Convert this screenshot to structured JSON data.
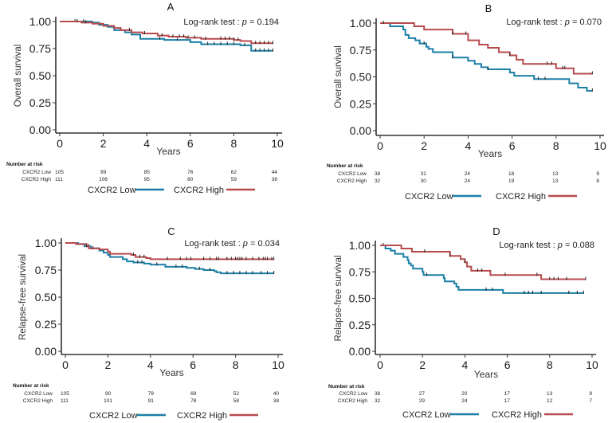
{
  "colors": {
    "low": "#1a7fa6",
    "high": "#b84a4e"
  },
  "chart_data": [
    {
      "type": "line",
      "subtype": "kaplan-meier",
      "title": "A",
      "xlabel": "Years",
      "ylabel": "Overall survival",
      "xlim": [
        0,
        10
      ],
      "ylim": [
        0,
        1
      ],
      "xticks": [
        "0",
        "2",
        "4",
        "6",
        "8",
        "10"
      ],
      "yticks": [
        "0.00",
        "0.25",
        "0.50",
        "0.75",
        "1.00"
      ],
      "annotation": {
        "label": "Log-rank test :",
        "p_symbol": "p",
        "p_value": "= 0.194"
      },
      "legend": {
        "position": "bottom",
        "entries": [
          "CXCR2 Low",
          "CXCR2 High"
        ]
      },
      "risk_table": {
        "header": "Number at risk",
        "times": [
          0,
          2,
          4,
          6,
          8,
          10
        ],
        "rows": [
          {
            "label": "CXCR2 Low",
            "values": [
              "105",
              "99",
              "85",
              "76",
              "62",
              "44"
            ]
          },
          {
            "label": "CXCR2 High",
            "values": [
              "111",
              "106",
              "95",
              "80",
              "59",
              "38"
            ]
          }
        ]
      },
      "series": [
        {
          "name": "CXCR2 Low",
          "steps": [
            [
              0,
              1.0
            ],
            [
              1.5,
              0.99
            ],
            [
              1.8,
              0.97
            ],
            [
              2.2,
              0.95
            ],
            [
              2.5,
              0.92
            ],
            [
              3.0,
              0.9
            ],
            [
              3.3,
              0.88
            ],
            [
              3.7,
              0.84
            ],
            [
              4.8,
              0.83
            ],
            [
              6.0,
              0.81
            ],
            [
              6.5,
              0.79
            ],
            [
              8.3,
              0.78
            ],
            [
              8.8,
              0.73
            ],
            [
              9.8,
              0.73
            ]
          ],
          "censor_times": [
            0.7,
            1.1,
            4.6,
            5.4,
            6.8,
            7.1,
            7.4,
            7.7,
            8.0,
            8.5,
            9.0,
            9.2,
            9.4,
            9.6,
            9.8
          ]
        },
        {
          "name": "CXCR2 High",
          "steps": [
            [
              0,
              1.0
            ],
            [
              1.0,
              0.99
            ],
            [
              1.5,
              0.98
            ],
            [
              2.0,
              0.96
            ],
            [
              2.5,
              0.94
            ],
            [
              2.8,
              0.92
            ],
            [
              3.3,
              0.9
            ],
            [
              3.8,
              0.89
            ],
            [
              4.5,
              0.87
            ],
            [
              5.0,
              0.86
            ],
            [
              5.8,
              0.85
            ],
            [
              6.5,
              0.84
            ],
            [
              8.0,
              0.83
            ],
            [
              8.3,
              0.82
            ],
            [
              8.8,
              0.8
            ],
            [
              9.8,
              0.8
            ]
          ],
          "censor_times": [
            0.8,
            1.2,
            3.2,
            3.9,
            4.7,
            5.2,
            5.5,
            5.7,
            5.9,
            6.2,
            6.7,
            7.4,
            7.6,
            7.8,
            8.0,
            8.2,
            9.0,
            9.2,
            9.4,
            9.6,
            9.8
          ]
        }
      ]
    },
    {
      "type": "line",
      "subtype": "kaplan-meier",
      "title": "B",
      "xlabel": "Years",
      "ylabel": "Overall survival",
      "xlim": [
        0,
        10
      ],
      "ylim": [
        0,
        1
      ],
      "xticks": [
        "0",
        "2",
        "4",
        "6",
        "8",
        "10"
      ],
      "yticks": [
        "0.00",
        "0.25",
        "0.50",
        "0.75",
        "1.00"
      ],
      "annotation": {
        "label": "Log-rank test :",
        "p_symbol": "p",
        "p_value": "= 0.070"
      },
      "legend": {
        "position": "bottom",
        "entries": [
          "CXCR2 Low",
          "CXCR2 High"
        ]
      },
      "risk_table": {
        "header": "Number at risk",
        "times": [
          0,
          2,
          4,
          6,
          8,
          10
        ],
        "rows": [
          {
            "label": "CXCR2 Low",
            "values": [
              "38",
              "31",
              "24",
              "18",
              "13",
              "9"
            ]
          },
          {
            "label": "CXCR2 High",
            "values": [
              "32",
              "30",
              "24",
              "19",
              "13",
              "8"
            ]
          }
        ]
      },
      "series": [
        {
          "name": "CXCR2 Low",
          "steps": [
            [
              0,
              1.0
            ],
            [
              0.45,
              0.97
            ],
            [
              1.05,
              0.94
            ],
            [
              1.15,
              0.89
            ],
            [
              1.3,
              0.86
            ],
            [
              1.6,
              0.84
            ],
            [
              1.8,
              0.81
            ],
            [
              2.1,
              0.78
            ],
            [
              2.2,
              0.76
            ],
            [
              2.4,
              0.73
            ],
            [
              3.3,
              0.68
            ],
            [
              4.0,
              0.65
            ],
            [
              4.3,
              0.62
            ],
            [
              4.6,
              0.59
            ],
            [
              4.9,
              0.57
            ],
            [
              5.9,
              0.54
            ],
            [
              6.1,
              0.51
            ],
            [
              7.0,
              0.48
            ],
            [
              8.6,
              0.44
            ],
            [
              9.0,
              0.4
            ],
            [
              9.4,
              0.37
            ],
            [
              9.65,
              0.37
            ]
          ],
          "censor_times": [
            2.0,
            3.3,
            4.9,
            7.2,
            7.5,
            9.65
          ]
        },
        {
          "name": "CXCR2 High",
          "steps": [
            [
              0,
              1.0
            ],
            [
              1.55,
              0.97
            ],
            [
              2.0,
              0.94
            ],
            [
              3.3,
              0.9
            ],
            [
              4.0,
              0.84
            ],
            [
              4.5,
              0.8
            ],
            [
              4.9,
              0.77
            ],
            [
              5.4,
              0.73
            ],
            [
              5.9,
              0.7
            ],
            [
              6.2,
              0.66
            ],
            [
              6.5,
              0.62
            ],
            [
              8.0,
              0.58
            ],
            [
              8.8,
              0.53
            ],
            [
              9.65,
              0.53
            ]
          ],
          "censor_times": [
            0.15,
            3.3,
            3.9,
            5.9,
            7.6,
            7.8,
            8.3,
            8.4,
            9.65
          ]
        }
      ]
    },
    {
      "type": "line",
      "subtype": "kaplan-meier",
      "title": "C",
      "xlabel": "Years",
      "ylabel": "Relapse-free survival",
      "xlim": [
        0,
        10
      ],
      "ylim": [
        0,
        1
      ],
      "xticks": [
        "0",
        "2",
        "4",
        "6",
        "8",
        "10"
      ],
      "yticks": [
        "0.00",
        "0.25",
        "0.50",
        "0.75",
        "1.00"
      ],
      "annotation": {
        "label": "Log-rank test :",
        "p_symbol": "p",
        "p_value": "= 0.034"
      },
      "legend": {
        "position": "bottom",
        "entries": [
          "CXCR2 Low",
          "CXCR2 High"
        ]
      },
      "risk_table": {
        "header": "Number at risk",
        "times": [
          0,
          2,
          4,
          6,
          8,
          10
        ],
        "rows": [
          {
            "label": "CXCR2 Low",
            "values": [
              "105",
              "90",
              "79",
              "69",
              "52",
              "40"
            ]
          },
          {
            "label": "CXCR2 High",
            "values": [
              "111",
              "101",
              "91",
              "78",
              "58",
              "38"
            ]
          }
        ]
      },
      "series": [
        {
          "name": "CXCR2 Low",
          "steps": [
            [
              0,
              1.0
            ],
            [
              0.6,
              0.99
            ],
            [
              0.9,
              0.97
            ],
            [
              1.2,
              0.95
            ],
            [
              1.6,
              0.93
            ],
            [
              1.8,
              0.91
            ],
            [
              2.0,
              0.89
            ],
            [
              2.1,
              0.87
            ],
            [
              2.7,
              0.85
            ],
            [
              2.9,
              0.83
            ],
            [
              3.2,
              0.82
            ],
            [
              3.7,
              0.81
            ],
            [
              4.0,
              0.8
            ],
            [
              4.7,
              0.78
            ],
            [
              5.7,
              0.77
            ],
            [
              6.1,
              0.76
            ],
            [
              6.5,
              0.75
            ],
            [
              7.0,
              0.74
            ],
            [
              7.1,
              0.73
            ],
            [
              7.3,
              0.72
            ],
            [
              9.8,
              0.72
            ]
          ],
          "censor_times": [
            1.0,
            1.1,
            3.4,
            3.6,
            4.3,
            5.2,
            5.5,
            6.3,
            6.8,
            7.6,
            7.9,
            8.2,
            8.5,
            8.8,
            9.2,
            9.5,
            9.8
          ]
        },
        {
          "name": "CXCR2 High",
          "steps": [
            [
              0,
              1.0
            ],
            [
              0.5,
              0.99
            ],
            [
              1.0,
              0.97
            ],
            [
              1.1,
              0.95
            ],
            [
              1.6,
              0.94
            ],
            [
              2.0,
              0.92
            ],
            [
              2.1,
              0.9
            ],
            [
              3.1,
              0.89
            ],
            [
              3.3,
              0.87
            ],
            [
              3.8,
              0.86
            ],
            [
              4.0,
              0.85
            ],
            [
              9.8,
              0.85
            ]
          ],
          "censor_times": [
            1.0,
            1.3,
            3.2,
            3.5,
            3.7,
            4.8,
            5.4,
            5.7,
            5.9,
            6.5,
            6.8,
            7.1,
            7.2,
            7.6,
            7.8,
            8.0,
            8.1,
            8.2,
            8.3,
            8.5,
            8.8,
            9.1,
            9.3,
            9.4,
            9.5,
            9.7,
            9.8
          ]
        }
      ]
    },
    {
      "type": "line",
      "subtype": "kaplan-meier",
      "title": "D",
      "xlabel": "Years",
      "ylabel": "Relapse-free survival",
      "xlim": [
        0,
        10
      ],
      "ylim": [
        0,
        1
      ],
      "xticks": [
        "0",
        "2",
        "4",
        "6",
        "8",
        "10"
      ],
      "yticks": [
        "0.00",
        "0.25",
        "0.50",
        "0.75",
        "1.00"
      ],
      "annotation": {
        "label": "Log-rank test :",
        "p_symbol": "p",
        "p_value": "= 0.088"
      },
      "legend": {
        "position": "bottom",
        "entries": [
          "CXCR2 Low",
          "CXCR2 High"
        ]
      },
      "risk_table": {
        "header": "Number at risk",
        "times": [
          0,
          2,
          4,
          6,
          8,
          10
        ],
        "rows": [
          {
            "label": "CXCR2 Low",
            "values": [
              "38",
              "27",
              "20",
              "17",
              "13",
              "9"
            ]
          },
          {
            "label": "CXCR2 High",
            "values": [
              "32",
              "29",
              "24",
              "17",
              "12",
              "7"
            ]
          }
        ]
      },
      "series": [
        {
          "name": "CXCR2 Low",
          "steps": [
            [
              0,
              1.0
            ],
            [
              0.25,
              0.97
            ],
            [
              0.5,
              0.95
            ],
            [
              0.7,
              0.92
            ],
            [
              1.1,
              0.89
            ],
            [
              1.3,
              0.86
            ],
            [
              1.35,
              0.83
            ],
            [
              1.45,
              0.81
            ],
            [
              1.55,
              0.78
            ],
            [
              2.0,
              0.75
            ],
            [
              2.05,
              0.72
            ],
            [
              3.0,
              0.69
            ],
            [
              3.05,
              0.66
            ],
            [
              3.5,
              0.64
            ],
            [
              3.6,
              0.61
            ],
            [
              3.7,
              0.58
            ],
            [
              5.8,
              0.55
            ],
            [
              9.6,
              0.55
            ]
          ],
          "censor_times": [
            0.15,
            2.2,
            5.0,
            5.3,
            6.8,
            7.0,
            7.2,
            7.6,
            8.9,
            9.3,
            9.6
          ]
        },
        {
          "name": "CXCR2 High",
          "steps": [
            [
              0,
              1.0
            ],
            [
              1.0,
              0.97
            ],
            [
              1.5,
              0.94
            ],
            [
              3.3,
              0.9
            ],
            [
              3.8,
              0.87
            ],
            [
              4.0,
              0.84
            ],
            [
              4.1,
              0.8
            ],
            [
              4.3,
              0.76
            ],
            [
              5.2,
              0.72
            ],
            [
              7.6,
              0.68
            ],
            [
              9.7,
              0.68
            ]
          ],
          "censor_times": [
            2.1,
            3.3,
            4.0,
            4.6,
            4.8,
            5.9,
            7.4,
            8.0,
            8.2,
            8.4,
            8.8,
            9.7
          ]
        }
      ]
    }
  ]
}
